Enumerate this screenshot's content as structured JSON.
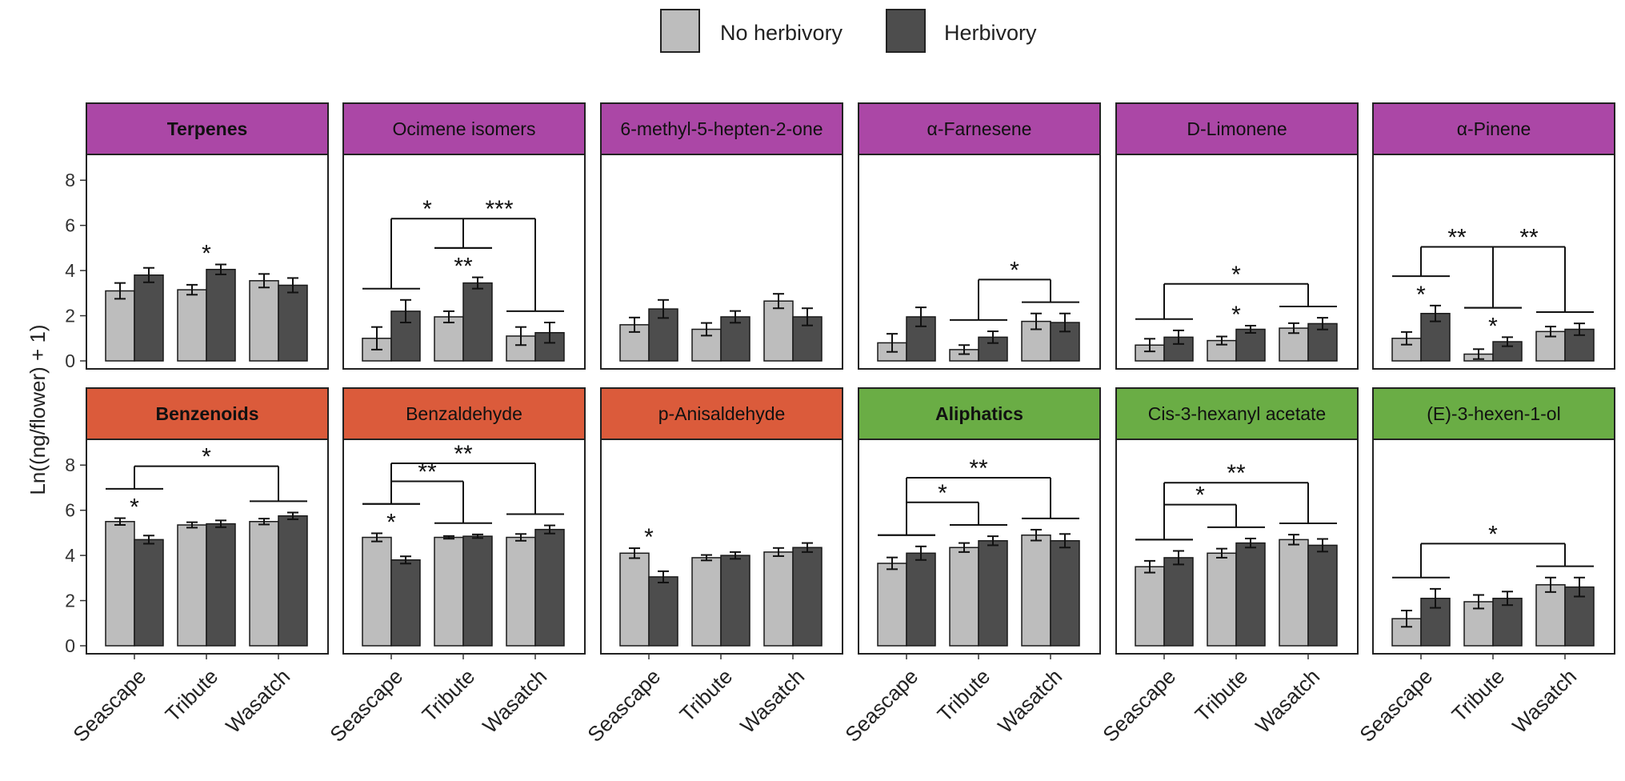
{
  "colors": {
    "no_herbivory": "#bdbdbd",
    "herbivory": "#4d4d4d",
    "terpenes_strip": "#ab47a6",
    "benzenoids_strip": "#db5b3b",
    "aliphatics_strip": "#6aad45"
  },
  "chart_data": {
    "type": "bar",
    "ylabel": "Ln((ng/flower) + 1)",
    "ylim": [
      0,
      9
    ],
    "yticks": [
      0,
      2,
      4,
      6,
      8
    ],
    "categories": [
      "Seascape",
      "Tribute",
      "Wasatch"
    ],
    "legend": [
      "No herbivory",
      "Herbivory"
    ],
    "legend_position": "top-center",
    "panels": [
      {
        "title": "Terpenes",
        "bold": true,
        "class": "terpenes",
        "no_herbivory": [
          3.1,
          3.15,
          3.55
        ],
        "herbivory": [
          3.8,
          4.05,
          3.35
        ],
        "err_no": [
          0.35,
          0.22,
          0.3
        ],
        "err_h": [
          0.32,
          0.22,
          0.32
        ],
        "stars": [
          {
            "group": 1,
            "label": "*"
          }
        ],
        "brackets": []
      },
      {
        "title": "Ocimene isomers",
        "bold": false,
        "class": "terpenes",
        "no_herbivory": [
          1.0,
          1.95,
          1.1
        ],
        "herbivory": [
          2.2,
          3.45,
          1.25
        ],
        "err_no": [
          0.5,
          0.25,
          0.4
        ],
        "err_h": [
          0.5,
          0.25,
          0.45
        ],
        "stars": [
          {
            "group": 1,
            "label": "**"
          }
        ],
        "brackets": [
          {
            "left": 0,
            "right": 1,
            "label": "*",
            "ref": "right"
          },
          {
            "left": 1,
            "right": 2,
            "label": "***",
            "ref": "left"
          }
        ]
      },
      {
        "title": "6-methyl-5-hepten-2-one",
        "bold": false,
        "class": "terpenes",
        "no_herbivory": [
          1.6,
          1.4,
          2.65
        ],
        "herbivory": [
          2.3,
          1.95,
          1.95
        ],
        "err_no": [
          0.32,
          0.28,
          0.32
        ],
        "err_h": [
          0.4,
          0.26,
          0.38
        ],
        "stars": [],
        "brackets": []
      },
      {
        "title": "α-Farnesene",
        "bold": false,
        "class": "terpenes",
        "no_herbivory": [
          0.8,
          0.5,
          1.75
        ],
        "herbivory": [
          1.95,
          1.05,
          1.7
        ],
        "err_no": [
          0.4,
          0.2,
          0.35
        ],
        "err_h": [
          0.42,
          0.26,
          0.4
        ],
        "stars": [],
        "brackets": [
          {
            "left": 1,
            "right": 2,
            "label": "*",
            "ref": "left"
          }
        ]
      },
      {
        "title": "D-Limonene",
        "bold": false,
        "class": "terpenes",
        "no_herbivory": [
          0.7,
          0.9,
          1.45
        ],
        "herbivory": [
          1.05,
          1.4,
          1.65
        ],
        "err_no": [
          0.28,
          0.18,
          0.22
        ],
        "err_h": [
          0.3,
          0.16,
          0.26
        ],
        "stars": [
          {
            "group": 1,
            "label": "*"
          }
        ],
        "brackets": [
          {
            "left": 0,
            "right": 2,
            "label": "*",
            "ref": "left"
          }
        ]
      },
      {
        "title": "α-Pinene",
        "bold": false,
        "class": "terpenes",
        "no_herbivory": [
          1.0,
          0.3,
          1.3
        ],
        "herbivory": [
          2.1,
          0.85,
          1.4
        ],
        "err_no": [
          0.28,
          0.22,
          0.22
        ],
        "err_h": [
          0.35,
          0.2,
          0.26
        ],
        "stars": [
          {
            "group": 0,
            "label": "*"
          },
          {
            "group": 1,
            "label": "*"
          }
        ],
        "brackets": [
          {
            "left": 0,
            "right": 1,
            "label": "**",
            "ref": "right"
          },
          {
            "left": 1,
            "right": 2,
            "label": "**",
            "ref": "left"
          }
        ]
      },
      {
        "title": "Benzenoids",
        "bold": true,
        "class": "benzenoids",
        "no_herbivory": [
          5.5,
          5.35,
          5.5
        ],
        "herbivory": [
          4.7,
          5.4,
          5.75
        ],
        "err_no": [
          0.15,
          0.12,
          0.13
        ],
        "err_h": [
          0.18,
          0.15,
          0.15
        ],
        "stars": [
          {
            "group": 0,
            "label": "*"
          }
        ],
        "brackets": [
          {
            "left": 0,
            "right": 2,
            "label": "*",
            "ref": "left"
          }
        ]
      },
      {
        "title": "Benzaldehyde",
        "bold": false,
        "class": "benzenoids",
        "no_herbivory": [
          4.8,
          4.8,
          4.8
        ],
        "herbivory": [
          3.8,
          4.85,
          5.15
        ],
        "err_no": [
          0.18,
          0.06,
          0.15
        ],
        "err_h": [
          0.16,
          0.08,
          0.18
        ],
        "stars": [
          {
            "group": 0,
            "label": "*"
          }
        ],
        "brackets": [
          {
            "left": 0,
            "right": 1,
            "label": "**",
            "ref": "left"
          },
          {
            "left": 0,
            "right": 2,
            "label": "**",
            "ref": "left"
          }
        ]
      },
      {
        "title": "p-Anisaldehyde",
        "bold": false,
        "class": "benzenoids",
        "no_herbivory": [
          4.1,
          3.9,
          4.15
        ],
        "herbivory": [
          3.05,
          4.0,
          4.35
        ],
        "err_no": [
          0.22,
          0.12,
          0.18
        ],
        "err_h": [
          0.25,
          0.15,
          0.2
        ],
        "stars": [
          {
            "group": 0,
            "label": "*"
          }
        ],
        "brackets": []
      },
      {
        "title": "Aliphatics",
        "bold": true,
        "class": "aliphatics",
        "no_herbivory": [
          3.65,
          4.35,
          4.9
        ],
        "herbivory": [
          4.1,
          4.65,
          4.65
        ],
        "err_no": [
          0.26,
          0.2,
          0.24
        ],
        "err_h": [
          0.3,
          0.2,
          0.3
        ],
        "stars": [],
        "brackets": [
          {
            "left": 0,
            "right": 1,
            "label": "*",
            "ref": "left"
          },
          {
            "left": 0,
            "right": 2,
            "label": "**",
            "ref": "left"
          }
        ]
      },
      {
        "title": "Cis-3-hexanyl acetate",
        "bold": false,
        "class": "aliphatics",
        "no_herbivory": [
          3.5,
          4.1,
          4.7
        ],
        "herbivory": [
          3.9,
          4.55,
          4.45
        ],
        "err_no": [
          0.26,
          0.2,
          0.22
        ],
        "err_h": [
          0.3,
          0.2,
          0.28
        ],
        "stars": [],
        "brackets": [
          {
            "left": 0,
            "right": 1,
            "label": "*",
            "ref": "left"
          },
          {
            "left": 0,
            "right": 2,
            "label": "**",
            "ref": "left"
          }
        ]
      },
      {
        "title": "(E)-3-hexen-1-ol",
        "bold": false,
        "class": "aliphatics",
        "no_herbivory": [
          1.2,
          1.95,
          2.7
        ],
        "herbivory": [
          2.1,
          2.1,
          2.6
        ],
        "err_no": [
          0.36,
          0.3,
          0.32
        ],
        "err_h": [
          0.42,
          0.3,
          0.42
        ],
        "stars": [],
        "brackets": [
          {
            "left": 0,
            "right": 2,
            "label": "*",
            "ref": "left"
          }
        ]
      }
    ]
  }
}
